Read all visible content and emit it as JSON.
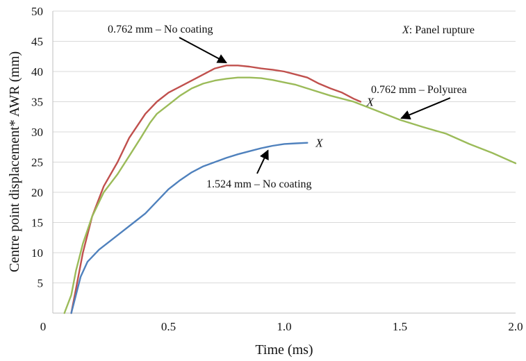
{
  "chart_data": {
    "type": "line",
    "xlabel": "Time (ms)",
    "ylabel": "Centre point displacement* AWR (mm)",
    "xlim": [
      0,
      2.0
    ],
    "ylim": [
      0,
      50
    ],
    "x_ticks": [
      "0",
      "0.5",
      "1.0",
      "1.5",
      "2.0"
    ],
    "y_ticks": [
      "5",
      "10",
      "15",
      "20",
      "25",
      "30",
      "35",
      "40",
      "45",
      "50"
    ],
    "grid": "horizontal",
    "legend_note": {
      "symbol": "X",
      "text": ": Panel rupture"
    },
    "series": [
      {
        "label": "0.762 mm – No coating",
        "color": "#c0504d",
        "points": [
          [
            0.08,
            0
          ],
          [
            0.1,
            4
          ],
          [
            0.13,
            10
          ],
          [
            0.17,
            16
          ],
          [
            0.22,
            21
          ],
          [
            0.28,
            25
          ],
          [
            0.33,
            29
          ],
          [
            0.4,
            33
          ],
          [
            0.45,
            35
          ],
          [
            0.5,
            36.5
          ],
          [
            0.55,
            37.5
          ],
          [
            0.6,
            38.5
          ],
          [
            0.65,
            39.5
          ],
          [
            0.7,
            40.5
          ],
          [
            0.75,
            41
          ],
          [
            0.8,
            41
          ],
          [
            0.85,
            40.8
          ],
          [
            0.9,
            40.5
          ],
          [
            0.95,
            40.3
          ],
          [
            1.0,
            40
          ],
          [
            1.05,
            39.5
          ],
          [
            1.1,
            39
          ],
          [
            1.15,
            38
          ],
          [
            1.2,
            37.2
          ],
          [
            1.25,
            36.5
          ],
          [
            1.3,
            35.5
          ],
          [
            1.33,
            35
          ]
        ]
      },
      {
        "label": "0.762 mm – Polyurea",
        "color": "#9bbb59",
        "points": [
          [
            0.05,
            0
          ],
          [
            0.08,
            3
          ],
          [
            0.1,
            7
          ],
          [
            0.13,
            11.5
          ],
          [
            0.17,
            16
          ],
          [
            0.22,
            20
          ],
          [
            0.28,
            23
          ],
          [
            0.33,
            26
          ],
          [
            0.38,
            29
          ],
          [
            0.42,
            31.5
          ],
          [
            0.45,
            33
          ],
          [
            0.5,
            34.5
          ],
          [
            0.55,
            36
          ],
          [
            0.6,
            37.2
          ],
          [
            0.65,
            38
          ],
          [
            0.7,
            38.5
          ],
          [
            0.75,
            38.8
          ],
          [
            0.8,
            39
          ],
          [
            0.85,
            39
          ],
          [
            0.9,
            38.9
          ],
          [
            0.95,
            38.6
          ],
          [
            1.0,
            38.2
          ],
          [
            1.05,
            37.8
          ],
          [
            1.1,
            37.2
          ],
          [
            1.2,
            36
          ],
          [
            1.3,
            35
          ],
          [
            1.4,
            33.5
          ],
          [
            1.5,
            32
          ],
          [
            1.6,
            30.8
          ],
          [
            1.7,
            29.7
          ],
          [
            1.8,
            28
          ],
          [
            1.9,
            26.5
          ],
          [
            2.0,
            24.8
          ]
        ]
      },
      {
        "label": "1.524 mm – No coating",
        "color": "#4f81bd",
        "points": [
          [
            0.08,
            0
          ],
          [
            0.1,
            3
          ],
          [
            0.12,
            6
          ],
          [
            0.15,
            8.5
          ],
          [
            0.2,
            10.5
          ],
          [
            0.25,
            12
          ],
          [
            0.3,
            13.5
          ],
          [
            0.35,
            15
          ],
          [
            0.4,
            16.5
          ],
          [
            0.45,
            18.5
          ],
          [
            0.5,
            20.5
          ],
          [
            0.55,
            22
          ],
          [
            0.6,
            23.3
          ],
          [
            0.65,
            24.3
          ],
          [
            0.7,
            25
          ],
          [
            0.75,
            25.7
          ],
          [
            0.8,
            26.3
          ],
          [
            0.85,
            26.8
          ],
          [
            0.9,
            27.3
          ],
          [
            0.95,
            27.7
          ],
          [
            1.0,
            28
          ],
          [
            1.05,
            28.1
          ],
          [
            1.1,
            28.2
          ]
        ]
      }
    ],
    "rupture_marks": [
      {
        "symbol": "X",
        "x": 1.35,
        "y": 35
      },
      {
        "symbol": "X",
        "x": 1.13,
        "y": 28.2
      }
    ],
    "annotations": [
      {
        "text": "0.762 mm – No coating",
        "arrow_to": [
          0.75,
          41
        ]
      },
      {
        "text": "0.762 mm – Polyurea",
        "arrow_to": [
          1.5,
          31.8
        ]
      },
      {
        "text": "1.524 mm – No coating",
        "arrow_to": [
          0.93,
          27.4
        ]
      }
    ]
  }
}
